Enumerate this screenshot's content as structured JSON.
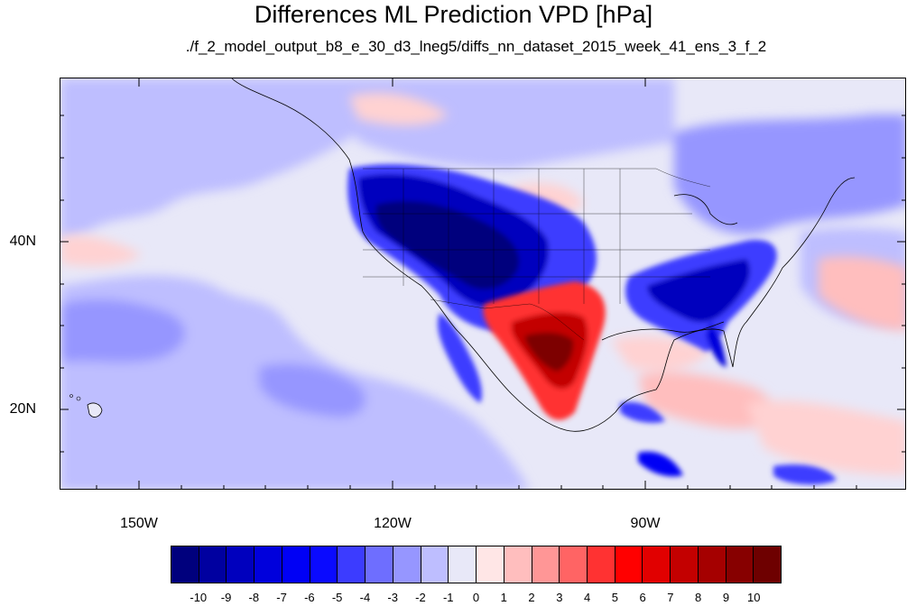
{
  "title": "Differences ML Prediction VPD [hPa]",
  "subtitle": "./f_2_model_output_b8_e_30_d3_lneg5/diffs_nn_dataset_2015_week_41_ens_3_f_2",
  "map": {
    "projection": "cylindrical equidistant",
    "lon_range": [
      -160,
      -60
    ],
    "lat_range": [
      10.5,
      59
    ],
    "lat_ticks": [
      {
        "value": 40,
        "label": "40N"
      },
      {
        "value": 20,
        "label": "20N"
      }
    ],
    "lon_ticks": [
      {
        "value": -150,
        "label": "150W"
      },
      {
        "value": -120,
        "label": "120W"
      },
      {
        "value": -90,
        "label": "90W"
      }
    ],
    "background_color": "#e8e8f8",
    "features": [
      {
        "name": "western-us-negative",
        "level": -10,
        "color": "#00007d"
      },
      {
        "name": "southeast-us-negative",
        "level": -8,
        "color": "#0000c8"
      },
      {
        "name": "mexico-positive",
        "level": 10,
        "color": "#7d0000"
      },
      {
        "name": "pacific-negative-band",
        "level": -3,
        "color": "#8e8ef7"
      },
      {
        "name": "caribbean-positive",
        "level": 2,
        "color": "#ffb6b6"
      }
    ]
  },
  "colorbar": {
    "labels": [
      "-10",
      "-9",
      "-8",
      "-7",
      "-6",
      "-5",
      "-4",
      "-3",
      "-2",
      "-1",
      "0",
      "1",
      "2",
      "3",
      "4",
      "5",
      "6",
      "7",
      "8",
      "9",
      "10"
    ],
    "colors": [
      "#00007d",
      "#0000a0",
      "#0000be",
      "#0000dc",
      "#0000f5",
      "#0a0aff",
      "#3c3cff",
      "#6e6eff",
      "#9696ff",
      "#bebeff",
      "#e8e8f8",
      "#ffe6e6",
      "#ffbebe",
      "#ff9696",
      "#ff6464",
      "#ff3232",
      "#ff0000",
      "#e10000",
      "#c30000",
      "#a50000",
      "#870000",
      "#6e0000"
    ]
  }
}
